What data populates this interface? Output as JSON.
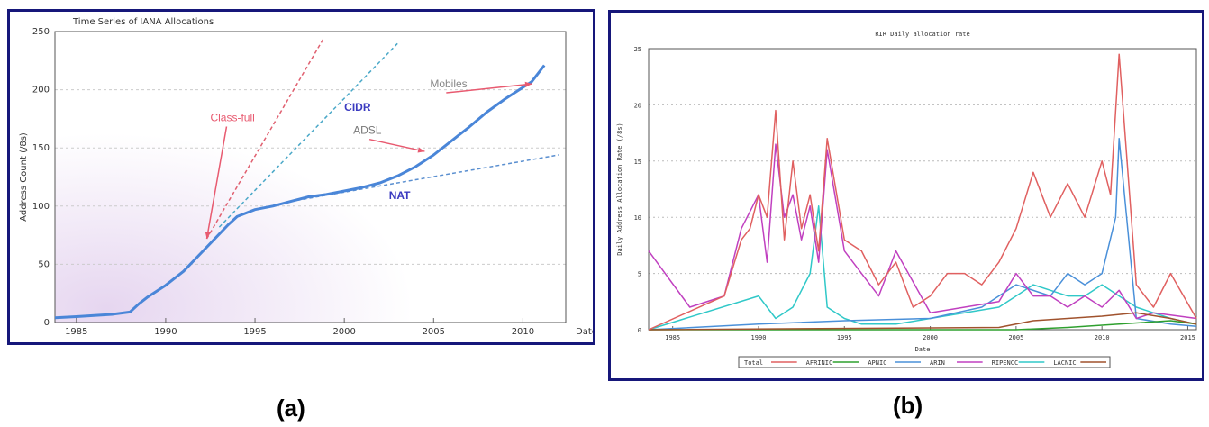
{
  "figure": {
    "panel_a_caption": "(a)",
    "panel_b_caption": "(b)"
  },
  "chart_data": [
    {
      "type": "line",
      "title": "Time Series of IANA Allocations",
      "xlabel": "Date",
      "ylabel": "Address Count (/8s)",
      "xlim": [
        1983.8,
        2012.4
      ],
      "ylim": [
        0,
        250
      ],
      "xticks": [
        1985,
        1990,
        1995,
        2000,
        2005,
        2010
      ],
      "yticks": [
        0,
        50,
        100,
        150,
        200,
        250
      ],
      "grid": "horizontal dashed",
      "series": [
        {
          "name": "",
          "color": "#4a86d8",
          "x": [
            1983.8,
            1985,
            1986,
            1987,
            1988,
            1988.5,
            1989,
            1990,
            1991,
            1992,
            1993,
            1993.5,
            1994,
            1995,
            1996,
            1997,
            1998,
            1999,
            2000,
            2001,
            2002,
            2003,
            2004,
            2005,
            2006,
            2007,
            2008,
            2009,
            2010,
            2010.5,
            2011.2
          ],
          "y": [
            4,
            5,
            6,
            7,
            9,
            16,
            22,
            32,
            44,
            60,
            76,
            84,
            91,
            97,
            100,
            104,
            108,
            110,
            113,
            116,
            120,
            126,
            134,
            144,
            156,
            168,
            181,
            192,
            202,
            207,
            221
          ]
        }
      ],
      "trend_lines": [
        {
          "color": "#e06070",
          "x": [
            1992.3,
            1998.8
          ],
          "y": [
            72,
            243
          ]
        },
        {
          "color": "#4aa8c8",
          "x": [
            1993.0,
            2003.0
          ],
          "y": [
            82,
            240
          ]
        },
        {
          "color": "#5a8fd0",
          "x": [
            1997.0,
            2012.0
          ],
          "y": [
            104,
            144
          ]
        }
      ],
      "annotations": [
        {
          "text": "Class-full",
          "color": "#e85a70",
          "x": 1992.5,
          "y": 173,
          "arrow_to": [
            1992.3,
            72
          ]
        },
        {
          "text": "CIDR",
          "color": "#3a3ac0",
          "x": 2000.0,
          "y": 182
        },
        {
          "text": "ADSL",
          "color": "#777777",
          "x": 2000.5,
          "y": 162,
          "arrow_to": [
            2004.5,
            147
          ]
        },
        {
          "text": "NAT",
          "color": "#3a3ac0",
          "x": 2002.5,
          "y": 106
        },
        {
          "text": "Mobiles",
          "color": "#888888",
          "x": 2004.8,
          "y": 202,
          "arrow_to": [
            2010.5,
            205
          ]
        }
      ]
    },
    {
      "type": "line",
      "title": "RIR Daily allocation rate",
      "xlabel": "Date",
      "ylabel": "Daily Address Allocation Rate (/8s)",
      "xlim": [
        1983.6,
        2015.5
      ],
      "ylim": [
        0,
        25
      ],
      "xticks": [
        1985,
        1990,
        1995,
        2000,
        2005,
        2010,
        2015
      ],
      "yticks": [
        0,
        5,
        10,
        15,
        20,
        25
      ],
      "grid": "horizontal dashed",
      "legend": "bottom",
      "series": [
        {
          "name": "Total",
          "color": "#e06060",
          "x": [
            1983.6,
            1988,
            1989,
            1989.5,
            1990,
            1990.5,
            1991,
            1991.5,
            1992,
            1992.5,
            1993,
            1993.5,
            1994,
            1995,
            1996,
            1997,
            1998,
            1999,
            2000,
            2001,
            2002,
            2003,
            2004,
            2005,
            2006,
            2007,
            2008,
            2009,
            2010,
            2010.5,
            2011,
            2012,
            2013,
            2014,
            2015.5
          ],
          "y": [
            0,
            3,
            8,
            9,
            12,
            10,
            19.5,
            8,
            15,
            9,
            12,
            7,
            17,
            8,
            7,
            4,
            6,
            2,
            3,
            5,
            5,
            4,
            6,
            9,
            14,
            10,
            13,
            10,
            15,
            12,
            24.5,
            4,
            2,
            5,
            1
          ]
        },
        {
          "name": "AFRINIC",
          "color": "#2fa02f",
          "x": [
            1983.6,
            2005,
            2008,
            2010,
            2012,
            2014,
            2015.5
          ],
          "y": [
            0,
            0,
            0.2,
            0.4,
            0.6,
            0.8,
            0.5
          ]
        },
        {
          "name": "APNIC",
          "color": "#4a90d9",
          "x": [
            1983.6,
            1990,
            1995,
            2000,
            2003,
            2005,
            2007,
            2008,
            2009,
            2010,
            2010.8,
            2011,
            2012,
            2014,
            2015.5
          ],
          "y": [
            0,
            0.5,
            0.8,
            1,
            2,
            4,
            3,
            5,
            4,
            5,
            10,
            17,
            1,
            0.5,
            0.3
          ]
        },
        {
          "name": "ARIN",
          "color": "#c040c0",
          "x": [
            1983.6,
            1986,
            1988,
            1989,
            1990,
            1990.5,
            1991,
            1991.5,
            1992,
            1992.5,
            1993,
            1993.5,
            1994,
            1995,
            1996,
            1997,
            1998,
            2000,
            2002,
            2004,
            2005,
            2006,
            2007,
            2008,
            2009,
            2010,
            2011,
            2012,
            2013,
            2015.5
          ],
          "y": [
            7,
            2,
            3,
            9,
            12,
            6,
            16.5,
            10,
            12,
            8,
            11,
            6,
            16,
            7,
            5,
            3,
            7,
            1.5,
            2,
            2.5,
            5,
            3,
            3,
            2,
            3,
            2,
            3.5,
            1,
            1.5,
            1
          ]
        },
        {
          "name": "RIPENCC",
          "color": "#30c8c8",
          "x": [
            1983.6,
            1990,
            1991,
            1992,
            1993,
            1993.5,
            1994,
            1995,
            1996,
            1998,
            2000,
            2002,
            2004,
            2005,
            2006,
            2007,
            2008,
            2009,
            2010,
            2011,
            2012,
            2014,
            2015.5
          ],
          "y": [
            0,
            3,
            1,
            2,
            5,
            11,
            2,
            1,
            0.5,
            0.5,
            1,
            1.5,
            2,
            3,
            4,
            3.5,
            3,
            3,
            4,
            3,
            2,
            1,
            0.5
          ]
        },
        {
          "name": "LACNIC",
          "color": "#a0522d",
          "x": [
            1983.6,
            2004,
            2006,
            2008,
            2010,
            2012,
            2014,
            2015.5
          ],
          "y": [
            0,
            0.2,
            0.8,
            1,
            1.2,
            1.5,
            1,
            0.5
          ]
        }
      ]
    }
  ]
}
